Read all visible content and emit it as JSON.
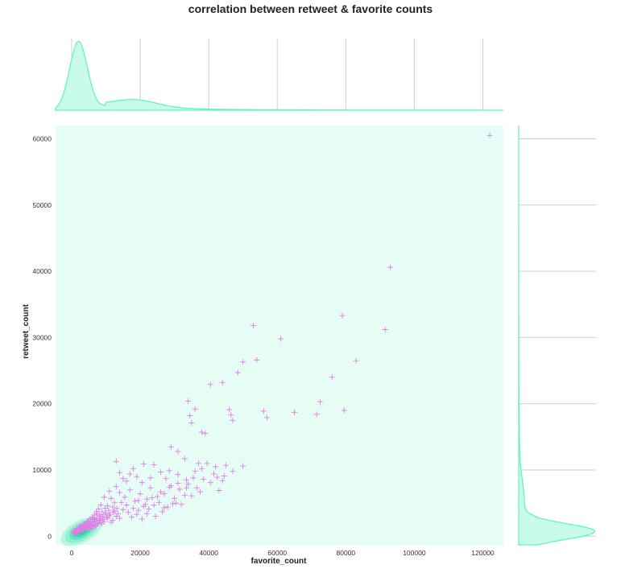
{
  "title": "correlation between retweet & favorite counts",
  "colors": {
    "points": "#e07ce8",
    "kde": "#5cf2c4",
    "kde_fill": "#c8fbe9",
    "plot_bg": "#e6fdf5",
    "grid": "#d0d0d0"
  },
  "chart_data": {
    "type": "scatter",
    "marker": "plus",
    "xlabel": "favorite_count",
    "ylabel": "retweet_count",
    "xlim": [
      -4700,
      126000
    ],
    "ylim": [
      -1300,
      62000
    ],
    "xticks": [
      0,
      20000,
      40000,
      60000,
      80000,
      100000,
      120000
    ],
    "yticks": [
      0,
      10000,
      20000,
      30000,
      40000,
      50000,
      60000
    ],
    "grid": true,
    "points": [
      [
        122000,
        60500
      ],
      [
        93000,
        40600
      ],
      [
        91500,
        31200
      ],
      [
        79000,
        33300
      ],
      [
        83000,
        26500
      ],
      [
        76000,
        24000
      ],
      [
        72500,
        20300
      ],
      [
        79500,
        19000
      ],
      [
        71500,
        18400
      ],
      [
        65000,
        18700
      ],
      [
        61000,
        29800
      ],
      [
        53000,
        31800
      ],
      [
        54000,
        26600
      ],
      [
        50000,
        26300
      ],
      [
        48500,
        24700
      ],
      [
        44000,
        23200
      ],
      [
        40500,
        22900
      ],
      [
        34000,
        20400
      ],
      [
        36000,
        19200
      ],
      [
        39000,
        15500
      ],
      [
        38000,
        15700
      ],
      [
        34500,
        18200
      ],
      [
        35000,
        17100
      ],
      [
        46000,
        19100
      ],
      [
        47000,
        17500
      ],
      [
        46500,
        18300
      ],
      [
        56000,
        18900
      ],
      [
        57000,
        17900
      ],
      [
        29000,
        13500
      ],
      [
        31000,
        12800
      ],
      [
        33000,
        11700
      ],
      [
        37000,
        11000
      ],
      [
        39500,
        11000
      ],
      [
        42000,
        10500
      ],
      [
        45000,
        10700
      ],
      [
        50000,
        10600
      ],
      [
        36000,
        9800
      ],
      [
        42500,
        8900
      ],
      [
        44000,
        8400
      ],
      [
        38500,
        8600
      ],
      [
        31000,
        9300
      ],
      [
        26000,
        9700
      ],
      [
        27500,
        8700
      ],
      [
        23000,
        8800
      ],
      [
        21000,
        10900
      ],
      [
        18000,
        10200
      ],
      [
        13000,
        11300
      ],
      [
        14000,
        9600
      ],
      [
        19000,
        9000
      ],
      [
        16000,
        8300
      ],
      [
        29000,
        7600
      ],
      [
        31500,
        7100
      ],
      [
        34000,
        7900
      ],
      [
        40500,
        8100
      ],
      [
        43000,
        6900
      ],
      [
        36500,
        7300
      ],
      [
        33000,
        6200
      ],
      [
        30000,
        5700
      ],
      [
        27000,
        6400
      ],
      [
        25000,
        6000
      ],
      [
        23000,
        7300
      ],
      [
        22000,
        5600
      ],
      [
        20000,
        6400
      ],
      [
        18500,
        5300
      ],
      [
        17000,
        7000
      ],
      [
        15500,
        5900
      ],
      [
        14000,
        6600
      ],
      [
        12500,
        5100
      ],
      [
        11500,
        5700
      ],
      [
        10500,
        4600
      ],
      [
        29500,
        4900
      ],
      [
        27000,
        4300
      ],
      [
        25500,
        5100
      ],
      [
        24000,
        4700
      ],
      [
        22500,
        4100
      ],
      [
        21000,
        4500
      ],
      [
        19500,
        3900
      ],
      [
        18000,
        4200
      ],
      [
        16500,
        3600
      ],
      [
        15000,
        4000
      ],
      [
        13500,
        3400
      ],
      [
        12500,
        3800
      ],
      [
        11000,
        3100
      ],
      [
        10000,
        3500
      ],
      [
        9000,
        2800
      ],
      [
        9500,
        3300
      ],
      [
        8500,
        3000
      ],
      [
        8000,
        2600
      ],
      [
        7500,
        3400
      ],
      [
        7000,
        2300
      ],
      [
        6500,
        2700
      ],
      [
        6000,
        2100
      ],
      [
        5500,
        2500
      ],
      [
        5000,
        1800
      ],
      [
        4500,
        2200
      ],
      [
        4000,
        1500
      ],
      [
        3500,
        1900
      ],
      [
        3000,
        1200
      ],
      [
        2500,
        1600
      ],
      [
        2000,
        900
      ],
      [
        1500,
        1200
      ],
      [
        1000,
        600
      ],
      [
        800,
        900
      ],
      [
        600,
        400
      ],
      [
        400,
        700
      ],
      [
        14000,
        2700
      ],
      [
        13000,
        3000
      ],
      [
        12000,
        2400
      ],
      [
        11500,
        2100
      ],
      [
        10500,
        2700
      ],
      [
        9500,
        2200
      ],
      [
        8800,
        1900
      ],
      [
        8200,
        2400
      ],
      [
        7600,
        2000
      ],
      [
        7000,
        1700
      ],
      [
        6400,
        2200
      ],
      [
        5800,
        1500
      ],
      [
        5200,
        1900
      ],
      [
        4600,
        1300
      ],
      [
        4000,
        1700
      ],
      [
        3400,
        1000
      ],
      [
        2800,
        1400
      ],
      [
        2200,
        700
      ],
      [
        1600,
        1000
      ],
      [
        1200,
        500
      ],
      [
        17500,
        2900
      ],
      [
        19000,
        3300
      ],
      [
        20500,
        2600
      ],
      [
        22000,
        3400
      ],
      [
        24500,
        3000
      ],
      [
        26500,
        3700
      ],
      [
        28000,
        4400
      ],
      [
        30500,
        5000
      ],
      [
        32000,
        4800
      ],
      [
        35000,
        6100
      ],
      [
        37500,
        6700
      ],
      [
        33500,
        8500
      ],
      [
        28500,
        9900
      ],
      [
        24000,
        10800
      ],
      [
        20500,
        8100
      ],
      [
        17000,
        9400
      ],
      [
        15000,
        8700
      ],
      [
        13000,
        7500
      ],
      [
        11000,
        6800
      ],
      [
        9500,
        5900
      ],
      [
        8500,
        4700
      ],
      [
        7800,
        4100
      ],
      [
        7200,
        3700
      ],
      [
        6600,
        3200
      ],
      [
        6000,
        2900
      ],
      [
        5400,
        2600
      ],
      [
        4800,
        2300
      ],
      [
        4200,
        2000
      ],
      [
        3600,
        1700
      ],
      [
        3000,
        1500
      ],
      [
        2600,
        1100
      ],
      [
        2200,
        1300
      ],
      [
        1800,
        800
      ],
      [
        1400,
        600
      ],
      [
        1000,
        300
      ],
      [
        12000,
        4400
      ],
      [
        10800,
        3900
      ],
      [
        9800,
        4200
      ],
      [
        8900,
        3700
      ],
      [
        8100,
        3200
      ],
      [
        7300,
        2800
      ],
      [
        6700,
        2500
      ],
      [
        6100,
        1800
      ],
      [
        5500,
        1600
      ],
      [
        4900,
        1400
      ],
      [
        4300,
        1100
      ],
      [
        3700,
        1300
      ],
      [
        3100,
        900
      ],
      [
        2700,
        700
      ],
      [
        2300,
        1000
      ],
      [
        19500,
        5400
      ],
      [
        21500,
        4800
      ],
      [
        23500,
        5800
      ],
      [
        26000,
        6700
      ],
      [
        28500,
        7400
      ],
      [
        31000,
        8000
      ],
      [
        33500,
        7300
      ],
      [
        35500,
        8800
      ],
      [
        38000,
        10200
      ],
      [
        41500,
        9400
      ],
      [
        44500,
        9100
      ],
      [
        47000,
        9800
      ],
      [
        16000,
        4700
      ],
      [
        14500,
        5100
      ],
      [
        13200,
        4200
      ],
      [
        12200,
        3600
      ],
      [
        11200,
        3300
      ],
      [
        10200,
        2900
      ],
      [
        9200,
        2500
      ],
      [
        8400,
        2100
      ],
      [
        7700,
        1900
      ],
      [
        7100,
        1600
      ],
      [
        6500,
        1400
      ],
      [
        5900,
        1200
      ],
      [
        5300,
        1000
      ]
    ]
  },
  "marginal_x": {
    "type": "kde",
    "grid_values": [
      0,
      20000,
      40000,
      60000,
      80000,
      100000,
      120000
    ]
  },
  "marginal_y": {
    "type": "kde",
    "grid_values": [
      0,
      10000,
      20000,
      30000,
      40000,
      50000,
      60000
    ]
  }
}
